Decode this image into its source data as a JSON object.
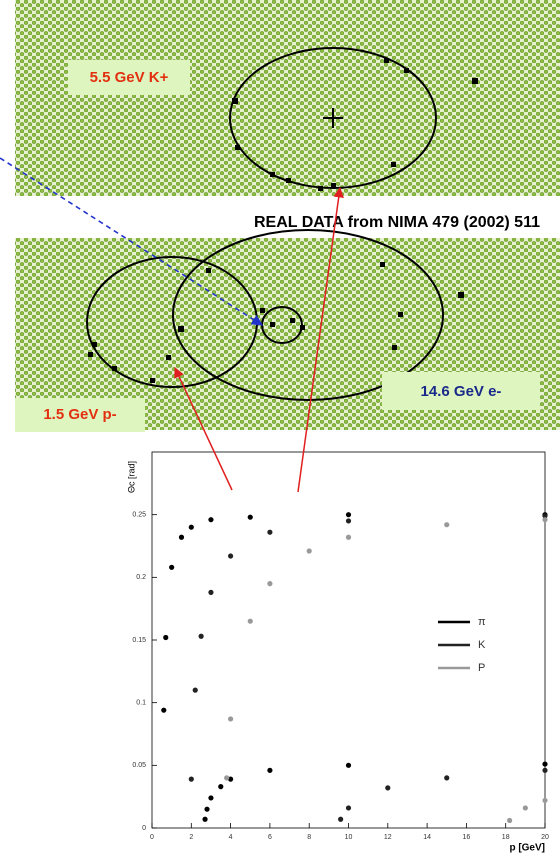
{
  "labels": {
    "kaon": "5.5 GeV K+",
    "source": "REAL DATA from NIMA 479 (2002) 511",
    "electron": "14.6 GeV e-",
    "proton": "1.5 GeV p-"
  },
  "chart_data": {
    "type": "scatter",
    "xlabel": "p [GeV]",
    "ylabel": "Θc [rad]",
    "xlim": [
      0,
      20
    ],
    "ylim": [
      0,
      0.3
    ],
    "xticks": [
      0,
      2,
      4,
      6,
      8,
      10,
      12,
      14,
      16,
      18,
      20
    ],
    "yticks": [
      0,
      0.05,
      0.1,
      0.15,
      0.2,
      0.25
    ],
    "series": [
      {
        "name": "π",
        "color": "#000000",
        "x": [
          0.6,
          0.7,
          1,
          1.5,
          2,
          3,
          5,
          10,
          20,
          2.7,
          2.8,
          3,
          3.5,
          4,
          6,
          10,
          20
        ],
        "values": [
          0.094,
          0.152,
          0.208,
          0.232,
          0.24,
          0.246,
          0.248,
          0.25,
          0.25,
          0.007,
          0.015,
          0.024,
          0.033,
          0.039,
          0.046,
          0.05,
          0.051
        ]
      },
      {
        "name": "K",
        "color": "#222222",
        "x": [
          2,
          2.2,
          2.5,
          3,
          4,
          6,
          10,
          20,
          9.6,
          10,
          12,
          15,
          20
        ],
        "values": [
          0.039,
          0.11,
          0.153,
          0.188,
          0.217,
          0.236,
          0.245,
          0.249,
          0.007,
          0.016,
          0.032,
          0.04,
          0.046
        ]
      },
      {
        "name": "P",
        "color": "#999999",
        "x": [
          3.8,
          4,
          5,
          6,
          8,
          10,
          15,
          20,
          18.2,
          19,
          20
        ],
        "values": [
          0.04,
          0.087,
          0.165,
          0.195,
          0.221,
          0.232,
          0.242,
          0.246,
          0.006,
          0.016,
          0.022
        ]
      }
    ]
  }
}
